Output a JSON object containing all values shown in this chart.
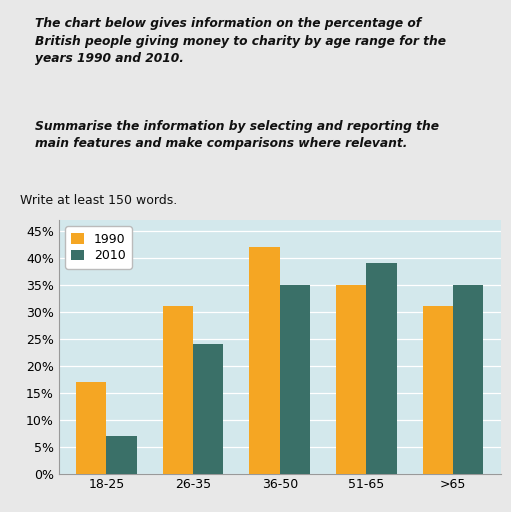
{
  "categories": [
    "18-25",
    "26-35",
    "36-50",
    "51-65",
    ">65"
  ],
  "values_1990": [
    17,
    31,
    42,
    35,
    31
  ],
  "values_2010": [
    7,
    24,
    35,
    39,
    35
  ],
  "color_1990": "#F5A623",
  "color_2010": "#3A7068",
  "legend_labels": [
    "1990",
    "2010"
  ],
  "yticks": [
    0,
    5,
    10,
    15,
    20,
    25,
    30,
    35,
    40,
    45
  ],
  "ytick_labels": [
    "0%",
    "5%",
    "10%",
    "15%",
    "20%",
    "25%",
    "30%",
    "35%",
    "40%",
    "45%"
  ],
  "ylim": [
    0,
    47
  ],
  "chart_bg": "#D3E8EC",
  "outer_bg": "#E8E8E8",
  "title_text": "The chart below gives information on the percentage of\nBritish people giving money to charity by age range for the\nyears 1990 and 2010.",
  "body_text": "Summarise the information by selecting and reporting the\nmain features and make comparisons where relevant.",
  "write_text": "Write at least 150 words.",
  "bar_width": 0.35,
  "grid_color": "#FFFFFF",
  "tick_fontsize": 9,
  "legend_fontsize": 9
}
